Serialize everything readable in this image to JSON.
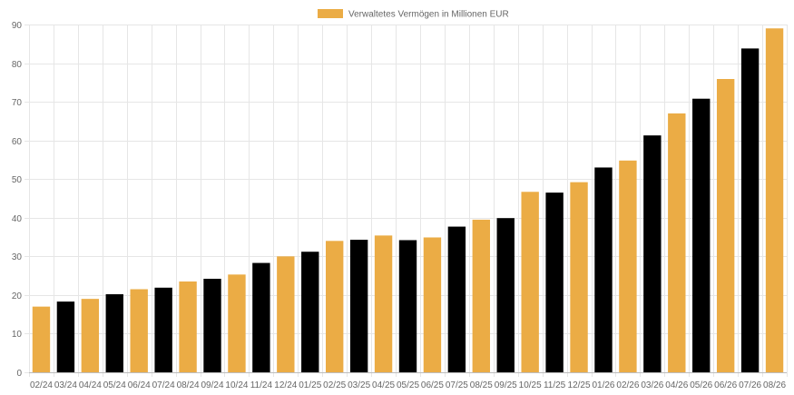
{
  "chart_data": {
    "type": "bar",
    "title": "",
    "xlabel": "",
    "ylabel": "",
    "ylim": [
      0,
      90
    ],
    "yticks": [
      0,
      10,
      20,
      30,
      40,
      50,
      60,
      70,
      80,
      90
    ],
    "grid": true,
    "legend_position": "top-center",
    "series": [
      {
        "name": "Verwaltetes Vermögen in Millionen EUR",
        "color": "#ebac45"
      }
    ],
    "alternate_color": "#000000",
    "categories": [
      "02/24",
      "03/24",
      "04/24",
      "05/24",
      "06/24",
      "07/24",
      "08/24",
      "09/24",
      "10/24",
      "11/24",
      "12/24",
      "01/25",
      "02/25",
      "03/25",
      "04/25",
      "05/25",
      "06/25",
      "07/25",
      "08/25",
      "09/25",
      "10/25",
      "11/25",
      "12/25",
      "01/26",
      "02/26",
      "03/26",
      "04/26",
      "05/26",
      "06/26",
      "07/26",
      "08/26"
    ],
    "values": [
      17,
      18.3,
      19,
      20.2,
      21.5,
      21.9,
      23.5,
      24.2,
      25.3,
      28.3,
      30,
      31.2,
      34,
      34.3,
      35.4,
      34.2,
      34.9,
      37.7,
      39.5,
      39.9,
      46.7,
      46.5,
      49.2,
      53,
      54.8,
      61.3,
      67,
      70.8,
      75.9,
      83.8,
      89
    ],
    "bar_colors": [
      "#ebac45",
      "#000000",
      "#ebac45",
      "#000000",
      "#ebac45",
      "#000000",
      "#ebac45",
      "#000000",
      "#ebac45",
      "#000000",
      "#ebac45",
      "#000000",
      "#ebac45",
      "#000000",
      "#ebac45",
      "#000000",
      "#ebac45",
      "#000000",
      "#ebac45",
      "#000000",
      "#ebac45",
      "#000000",
      "#ebac45",
      "#000000",
      "#ebac45",
      "#000000",
      "#ebac45",
      "#000000",
      "#ebac45",
      "#000000",
      "#ebac45"
    ]
  }
}
